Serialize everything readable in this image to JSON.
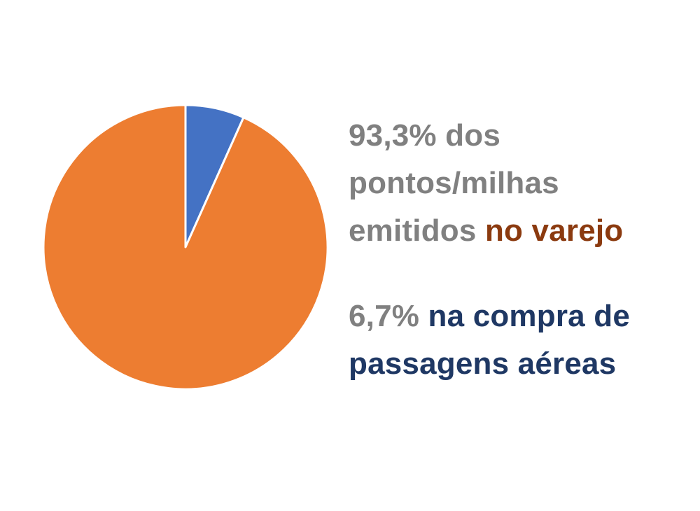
{
  "colors": {
    "retail_slice": "#ED7D31",
    "air_slice": "#4472C4",
    "slice_border": "#FFFFFF",
    "text_grey": "#808080",
    "text_brown": "#8B3A0F",
    "text_navy": "#1F3864"
  },
  "chart_data": {
    "type": "pie",
    "title": "",
    "categories": [
      "no varejo",
      "na compra de passagens aéreas"
    ],
    "values": [
      93.3,
      6.7
    ],
    "unit": "%",
    "start_angle_deg": 0,
    "direction": "clockwise",
    "slice_order": [
      1,
      0
    ]
  },
  "labels": {
    "retail": {
      "line1": "93,3% dos",
      "line2": "pontos/milhas",
      "line3_prefix": "emitidos ",
      "line3_highlight": "no varejo"
    },
    "air": {
      "line1_prefix": "6,7% ",
      "line1_highlight": "na compra de",
      "line2": "passagens aéreas"
    }
  }
}
